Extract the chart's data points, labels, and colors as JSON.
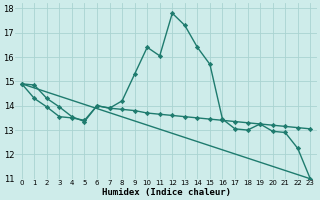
{
  "xlabel": "Humidex (Indice chaleur)",
  "bg_color": "#ceecea",
  "grid_color": "#aad4d1",
  "line_color": "#1e7b6e",
  "xlim": [
    -0.5,
    23.5
  ],
  "ylim": [
    11,
    18.2
  ],
  "xticks": [
    0,
    1,
    2,
    3,
    4,
    5,
    6,
    7,
    8,
    9,
    10,
    11,
    12,
    13,
    14,
    15,
    16,
    17,
    18,
    19,
    20,
    21,
    22,
    23
  ],
  "yticks": [
    11,
    12,
    13,
    14,
    15,
    16,
    17,
    18
  ],
  "line1_x": [
    0,
    1,
    2,
    3,
    4,
    5,
    6,
    7,
    8,
    9,
    10,
    11,
    12,
    13,
    14,
    15,
    16,
    17,
    18,
    19,
    20,
    21,
    22,
    23
  ],
  "line1_y": [
    14.9,
    14.85,
    14.3,
    13.95,
    13.55,
    13.35,
    14.0,
    13.9,
    14.2,
    15.3,
    16.4,
    16.05,
    17.8,
    17.3,
    16.4,
    15.7,
    13.45,
    13.05,
    13.0,
    13.25,
    12.95,
    12.9,
    12.25,
    11.0
  ],
  "line2_x": [
    0,
    1,
    2,
    3,
    4,
    5,
    6,
    7,
    8,
    9,
    10,
    11,
    12,
    13,
    14,
    15,
    16,
    17,
    18,
    19,
    20,
    21,
    22,
    23
  ],
  "line2_y": [
    14.9,
    14.3,
    13.95,
    13.55,
    13.5,
    13.4,
    14.0,
    13.9,
    13.85,
    13.8,
    13.7,
    13.65,
    13.6,
    13.55,
    13.5,
    13.45,
    13.4,
    13.35,
    13.3,
    13.25,
    13.2,
    13.15,
    13.1,
    13.05
  ],
  "line3_x": [
    0,
    23
  ],
  "line3_y": [
    14.9,
    11.0
  ],
  "marker": "D",
  "markersize": 2.2,
  "linewidth": 1.0
}
